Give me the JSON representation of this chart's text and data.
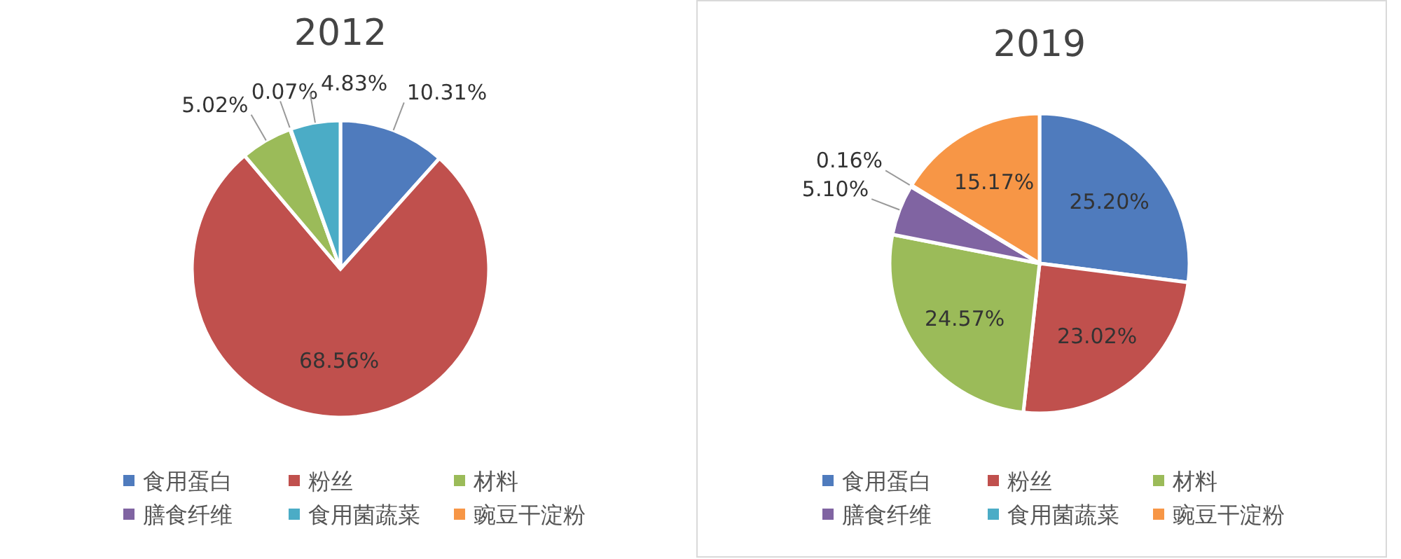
{
  "chart_data": [
    {
      "type": "pie",
      "title": "2012",
      "categories": [
        "食用蛋白",
        "粉丝",
        "材料",
        "膳食纤维",
        "食用菌蔬菜",
        "豌豆干淀粉"
      ],
      "values": [
        10.31,
        68.56,
        5.02,
        0.07,
        4.83,
        null
      ],
      "value_labels": [
        "10.31%",
        "68.56%",
        "5.02%",
        "0.07%",
        "4.83%",
        null
      ],
      "colors": [
        "#4f7bbd",
        "#c0504d",
        "#9bbb59",
        "#8064a2",
        "#4bacc6",
        "#f79646"
      ],
      "legend": "bottom"
    },
    {
      "type": "pie",
      "title": "2019",
      "categories": [
        "食用蛋白",
        "粉丝",
        "材料",
        "膳食纤维",
        "食用菌蔬菜",
        "豌豆干淀粉"
      ],
      "values": [
        25.2,
        23.02,
        24.57,
        5.1,
        0.16,
        15.17
      ],
      "value_labels": [
        "25.20%",
        "23.02%",
        "24.57%",
        "5.10%",
        "0.16%",
        "15.17%"
      ],
      "colors": [
        "#4f7bbd",
        "#c0504d",
        "#9bbb59",
        "#8064a2",
        "#4bacc6",
        "#f79646"
      ],
      "legend": "bottom"
    }
  ]
}
